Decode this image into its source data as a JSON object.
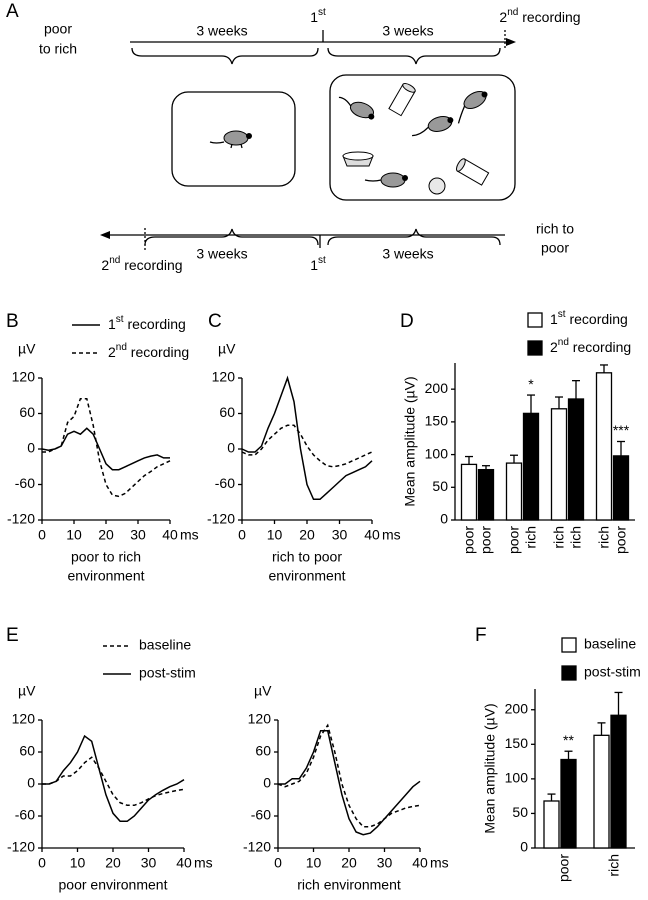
{
  "diagram": {
    "panel": "A",
    "top": {
      "start": [
        "poor",
        "to rich"
      ],
      "periods": [
        "3 weeks",
        "3 weeks"
      ],
      "mid": "1st",
      "end": "2nd recording"
    },
    "bottom": {
      "start": [
        "rich to",
        "poor"
      ],
      "periods": [
        "3 weeks",
        "3 weeks"
      ],
      "mid": "1st",
      "end": "2nd recording"
    }
  },
  "chart_data": [
    {
      "type": "line",
      "panel": "B",
      "y_unit": "µV",
      "x_unit": "ms",
      "xlabel": [
        "poor to rich",
        "environment"
      ],
      "xlim": [
        0,
        40
      ],
      "xticks": [
        0,
        10,
        20,
        30,
        40
      ],
      "ylim": [
        -120,
        120
      ],
      "yticks": [
        -120,
        -60,
        0,
        60,
        120
      ],
      "x": [
        0,
        2,
        4,
        6,
        8,
        10,
        12,
        14,
        16,
        18,
        20,
        22,
        24,
        26,
        28,
        30,
        32,
        34,
        36,
        38,
        40
      ],
      "series": [
        {
          "name": "1st recording",
          "color": "#000000",
          "style": "solid",
          "values": [
            0,
            -2,
            0,
            5,
            25,
            30,
            25,
            35,
            25,
            0,
            -25,
            -35,
            -35,
            -30,
            -25,
            -20,
            -15,
            -12,
            -10,
            -15,
            -15
          ]
        },
        {
          "name": "2nd recording",
          "color": "#000000",
          "style": "dashed",
          "values": [
            -5,
            -5,
            0,
            5,
            45,
            55,
            85,
            85,
            40,
            -20,
            -60,
            -78,
            -80,
            -75,
            -65,
            -55,
            -45,
            -38,
            -30,
            -25,
            -20
          ]
        }
      ]
    },
    {
      "type": "line",
      "panel": "C",
      "y_unit": "µV",
      "x_unit": "ms",
      "xlabel": [
        "rich to poor",
        "environment"
      ],
      "xlim": [
        0,
        40
      ],
      "xticks": [
        0,
        10,
        20,
        30,
        40
      ],
      "ylim": [
        -120,
        120
      ],
      "yticks": [
        -120,
        -60,
        0,
        60,
        120
      ],
      "x": [
        0,
        2,
        4,
        6,
        8,
        10,
        12,
        14,
        16,
        18,
        20,
        22,
        24,
        26,
        28,
        30,
        32,
        34,
        36,
        38,
        40
      ],
      "series": [
        {
          "color": "#000000",
          "style": "solid",
          "values": [
            0,
            -5,
            -5,
            5,
            35,
            60,
            90,
            120,
            80,
            0,
            -60,
            -85,
            -85,
            -75,
            -65,
            -55,
            -45,
            -40,
            -35,
            -30,
            -20
          ]
        },
        {
          "color": "#000000",
          "style": "dashed",
          "values": [
            -5,
            -10,
            -10,
            0,
            15,
            25,
            35,
            40,
            40,
            25,
            5,
            -10,
            -20,
            -28,
            -30,
            -28,
            -25,
            -20,
            -15,
            -10,
            -5
          ]
        }
      ]
    },
    {
      "type": "bar",
      "panel": "D",
      "ylabel": "Mean amplitude (µV)",
      "ylim": [
        0,
        240
      ],
      "yticks": [
        0,
        50,
        100,
        150,
        200
      ],
      "series": [
        {
          "name": "1st recording",
          "color": "#ffffff",
          "values": [
            85,
            87,
            170,
            225
          ],
          "errors": [
            12,
            12,
            18,
            12
          ],
          "bar_labels": [
            "poor",
            "poor",
            "rich",
            "rich"
          ],
          "annotations": [
            null,
            null,
            null,
            null
          ]
        },
        {
          "name": "2nd recording",
          "color": "#000000",
          "values": [
            77,
            163,
            185,
            98
          ],
          "errors": [
            6,
            28,
            28,
            22
          ],
          "bar_labels": [
            "poor",
            "rich",
            "rich",
            "poor"
          ],
          "annotations": [
            null,
            "*",
            null,
            "***"
          ]
        }
      ]
    },
    {
      "type": "line",
      "panel": "E",
      "y_unit": "µV",
      "x_unit": "ms",
      "xlabel": [
        "poor environment"
      ],
      "xlim": [
        0,
        40
      ],
      "xticks": [
        0,
        10,
        20,
        30,
        40
      ],
      "ylim": [
        -120,
        120
      ],
      "yticks": [
        -120,
        -60,
        0,
        60,
        120
      ],
      "x": [
        0,
        2,
        4,
        6,
        8,
        10,
        12,
        14,
        16,
        18,
        20,
        22,
        24,
        26,
        28,
        30,
        32,
        34,
        36,
        38,
        40
      ],
      "series": [
        {
          "name": "baseline",
          "color": "#000000",
          "style": "dashed",
          "values": [
            0,
            0,
            5,
            15,
            15,
            25,
            40,
            50,
            30,
            5,
            -20,
            -35,
            -40,
            -40,
            -35,
            -28,
            -22,
            -18,
            -15,
            -12,
            -10
          ]
        },
        {
          "name": "post-stim",
          "color": "#000000",
          "style": "solid",
          "values": [
            0,
            0,
            5,
            25,
            40,
            60,
            90,
            80,
            30,
            -20,
            -55,
            -70,
            -70,
            -60,
            -45,
            -30,
            -20,
            -12,
            -5,
            0,
            8
          ]
        }
      ]
    },
    {
      "type": "line",
      "y_unit": "µV",
      "x_unit": "ms",
      "xlabel": [
        "rich environment"
      ],
      "xlim": [
        0,
        40
      ],
      "xticks": [
        0,
        10,
        20,
        30,
        40
      ],
      "ylim": [
        -120,
        120
      ],
      "yticks": [
        -120,
        -60,
        0,
        60,
        120
      ],
      "x": [
        0,
        2,
        4,
        6,
        8,
        10,
        12,
        14,
        16,
        18,
        20,
        22,
        24,
        26,
        28,
        30,
        32,
        34,
        36,
        38,
        40
      ],
      "series": [
        {
          "color": "#000000",
          "style": "dashed",
          "values": [
            0,
            -5,
            0,
            5,
            20,
            50,
            90,
            110,
            60,
            0,
            -40,
            -65,
            -80,
            -80,
            -75,
            -65,
            -55,
            -50,
            -45,
            -42,
            -40
          ]
        },
        {
          "color": "#000000",
          "style": "solid",
          "values": [
            0,
            0,
            10,
            10,
            30,
            60,
            100,
            100,
            40,
            -20,
            -65,
            -90,
            -95,
            -92,
            -80,
            -65,
            -50,
            -35,
            -20,
            -5,
            5
          ]
        }
      ]
    },
    {
      "type": "bar",
      "panel": "F",
      "ylabel": "Mean amplitude (µV)",
      "ylim": [
        0,
        230
      ],
      "yticks": [
        0,
        50,
        100,
        150,
        200
      ],
      "categories": [
        "poor",
        "rich"
      ],
      "series": [
        {
          "name": "baseline",
          "color": "#ffffff",
          "values": [
            68,
            163
          ],
          "errors": [
            10,
            18
          ],
          "annotations": [
            null,
            null
          ]
        },
        {
          "name": "post-stim",
          "color": "#000000",
          "values": [
            128,
            192
          ],
          "errors": [
            12,
            33
          ],
          "annotations": [
            "**",
            null
          ]
        }
      ]
    }
  ]
}
